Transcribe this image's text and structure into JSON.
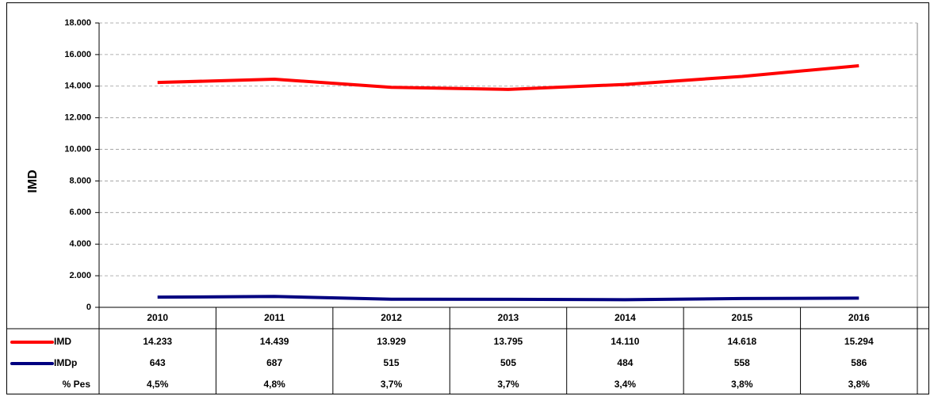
{
  "chart_data": {
    "type": "line",
    "y_label": "IMD",
    "categories": [
      "2010",
      "2011",
      "2012",
      "2013",
      "2014",
      "2015",
      "2016"
    ],
    "series": [
      {
        "name": "IMD",
        "color": "#ff0000",
        "values": [
          14233,
          14439,
          13929,
          13795,
          14110,
          14618,
          15294
        ],
        "value_labels": [
          "14.233",
          "14.439",
          "13.929",
          "13.795",
          "14.110",
          "14.618",
          "15.294"
        ]
      },
      {
        "name": "IMDp",
        "color": "#000080",
        "values": [
          643,
          687,
          515,
          505,
          484,
          558,
          586
        ]
      }
    ],
    "table_rows": [
      {
        "name": "% Pes",
        "values": [
          4.5,
          4.8,
          3.7,
          3.7,
          3.4,
          3.8,
          3.8
        ],
        "value_labels": [
          "4,5%",
          "4,8%",
          "3,7%",
          "3,7%",
          "3,4%",
          "3,8%",
          "3,8%"
        ]
      }
    ],
    "ylim": [
      0,
      18000
    ],
    "yticks": [
      0,
      {
        "value": 2000,
        "label": "2.000"
      },
      {
        "value": 4000,
        "label": "4.000"
      },
      {
        "value": 6000,
        "label": "6.000"
      },
      {
        "value": 8000,
        "label": "8.000"
      },
      {
        "value": 10000,
        "label": "10.000"
      },
      {
        "value": 12000,
        "label": "12.000"
      },
      {
        "value": 14000,
        "label": "14.000"
      },
      {
        "value": 16000,
        "label": "16.000"
      },
      {
        "value": 18000,
        "label": "18.000"
      }
    ],
    "grid": true
  }
}
